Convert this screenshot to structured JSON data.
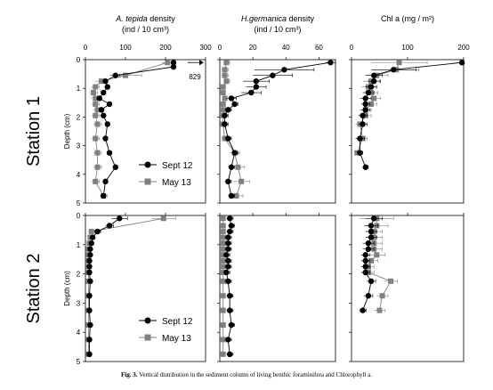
{
  "caption": {
    "label": "Fig. 3.",
    "text": "Vertical distribution in the sediment column of living benthic foraminifera and Chlorophyll a."
  },
  "colors": {
    "sept": "#000000",
    "may": "#808080",
    "axis": "#000000"
  },
  "stations": [
    "Station 1",
    "Station 2"
  ],
  "depth_label": "Depth (cm)",
  "legend": {
    "sept": "Sept 12",
    "may": "May 13"
  },
  "columns": [
    {
      "title_italic": "A. tepida",
      "title_rest": " density",
      "unit": "(ind / 10 cm³)"
    },
    {
      "title_italic": "H.germanica",
      "title_rest": " density",
      "unit": "(ind / 10 cm³)"
    },
    {
      "title_italic": "",
      "title_rest": "Chl a (mg / m²)",
      "unit": ""
    }
  ],
  "chart_data": [
    {
      "type": "line",
      "panel": "Station 1 - A. tepida",
      "x_ticks": [
        "0",
        "100",
        "200",
        "300"
      ],
      "xlim": [
        0,
        300
      ],
      "ylim": [
        0,
        5
      ],
      "y_ticks": [
        "0",
        "1",
        "2",
        "3",
        "4",
        "5"
      ],
      "annotation": "829",
      "series": [
        {
          "name": "Sept 12",
          "depth": [
            0.1,
            0.25,
            0.55,
            0.75,
            0.95,
            1.15,
            1.35,
            1.55,
            1.75,
            1.95,
            2.25,
            2.75,
            3.25,
            3.75,
            4.25,
            4.75
          ],
          "x": [
            220,
            220,
            75,
            50,
            55,
            45,
            35,
            60,
            40,
            45,
            55,
            50,
            60,
            75,
            50,
            45
          ],
          "err": [
            0,
            0,
            10,
            5,
            5,
            5,
            5,
            5,
            5,
            5,
            5,
            5,
            5,
            5,
            5,
            5
          ]
        },
        {
          "name": "May 13",
          "depth": [
            0.1,
            0.55,
            0.75,
            0.95,
            1.15,
            1.35,
            1.55,
            1.75,
            1.95,
            2.25,
            2.75,
            3.25,
            3.75,
            4.25,
            4.75
          ],
          "x": [
            205,
            100,
            40,
            25,
            20,
            25,
            25,
            30,
            25,
            30,
            25,
            30,
            30,
            25,
            45
          ],
          "err": [
            15,
            40,
            15,
            10,
            10,
            10,
            10,
            10,
            10,
            10,
            10,
            10,
            10,
            10,
            10
          ]
        }
      ]
    },
    {
      "type": "line",
      "panel": "Station 1 - H.germanica",
      "x_ticks": [
        "0",
        "20",
        "40",
        "60"
      ],
      "xlim": [
        0,
        70
      ],
      "ylim": [
        0,
        5
      ],
      "series": [
        {
          "name": "Sept 12",
          "depth": [
            0.1,
            0.35,
            0.55,
            0.75,
            0.95,
            1.15,
            1.35,
            1.55,
            1.75,
            1.95,
            2.25,
            2.75,
            3.25,
            3.75,
            4.25,
            4.75
          ],
          "x": [
            67,
            39,
            32,
            22,
            22,
            19,
            7,
            9,
            5,
            3,
            3,
            5,
            9,
            7,
            5,
            7
          ],
          "err": [
            3,
            18,
            12,
            8,
            6,
            6,
            3,
            2,
            2,
            2,
            2,
            2,
            2,
            2,
            2,
            2
          ]
        },
        {
          "name": "May 13",
          "depth": [
            0.1,
            0.35,
            0.55,
            0.75,
            0.95,
            1.15,
            1.35,
            1.55,
            1.75,
            1.95,
            2.25,
            2.75,
            3.25,
            3.75,
            4.25,
            4.75
          ],
          "x": [
            4,
            3,
            3,
            4,
            2,
            2,
            3,
            2,
            2,
            2,
            2,
            3,
            9,
            11,
            13,
            10
          ],
          "err": [
            2,
            2,
            2,
            2,
            1,
            1,
            1,
            1,
            1,
            1,
            1,
            2,
            3,
            4,
            5,
            4
          ]
        }
      ]
    },
    {
      "type": "line",
      "panel": "Station 1 - Chl a",
      "x_ticks": [
        "0",
        "100",
        "200"
      ],
      "xlim": [
        0,
        200
      ],
      "ylim": [
        0,
        5
      ],
      "series": [
        {
          "name": "Sept 12",
          "depth": [
            0.1,
            0.35,
            0.55,
            0.75,
            0.95,
            1.15,
            1.35,
            1.55,
            1.75,
            1.95,
            2.25,
            2.75,
            3.25,
            3.75
          ],
          "x": [
            197,
            75,
            40,
            40,
            35,
            30,
            25,
            25,
            25,
            20,
            20,
            15,
            15,
            25
          ],
          "err": [
            5,
            40,
            15,
            12,
            10,
            10,
            10,
            8,
            8,
            8,
            8,
            8,
            5,
            5
          ]
        },
        {
          "name": "May 13",
          "depth": [
            0.1,
            0.35,
            0.55,
            0.75,
            0.95,
            1.15,
            1.35,
            1.55,
            1.75,
            1.95,
            2.25,
            2.75,
            3.25
          ],
          "x": [
            85,
            80,
            45,
            35,
            30,
            35,
            40,
            35,
            25,
            25,
            15,
            20,
            10
          ],
          "err": [
            50,
            40,
            20,
            15,
            12,
            12,
            12,
            10,
            10,
            10,
            8,
            8,
            5
          ]
        }
      ]
    },
    {
      "type": "line",
      "panel": "Station 2 - A. tepida",
      "xlim": [
        0,
        300
      ],
      "ylim": [
        0,
        5
      ],
      "series": [
        {
          "name": "Sept 12",
          "depth": [
            0.1,
            0.35,
            0.55,
            0.75,
            0.95,
            1.15,
            1.35,
            1.55,
            1.75,
            1.95,
            2.25,
            2.75,
            3.25,
            3.75,
            4.25,
            4.75
          ],
          "x": [
            85,
            60,
            30,
            18,
            15,
            12,
            12,
            10,
            10,
            10,
            12,
            10,
            10,
            12,
            10,
            10
          ],
          "err": [
            20,
            10,
            8,
            5,
            4,
            3,
            3,
            3,
            3,
            3,
            3,
            3,
            3,
            3,
            3,
            3
          ]
        },
        {
          "name": "May 13",
          "depth": [
            0.1,
            0.55,
            0.75,
            0.95,
            1.15,
            1.35,
            1.55,
            1.75,
            1.95,
            2.25,
            2.75,
            3.25,
            3.75,
            4.25,
            4.75
          ],
          "x": [
            195,
            15,
            12,
            10,
            8,
            8,
            8,
            8,
            8,
            8,
            8,
            8,
            8,
            8,
            8
          ],
          "err": [
            30,
            8,
            5,
            4,
            3,
            3,
            3,
            3,
            3,
            3,
            3,
            3,
            3,
            3,
            3
          ]
        }
      ]
    },
    {
      "type": "line",
      "panel": "Station 2 - H.germanica",
      "xlim": [
        0,
        70
      ],
      "ylim": [
        0,
        5
      ],
      "series": [
        {
          "name": "Sept 12",
          "depth": [
            0.1,
            0.35,
            0.55,
            0.75,
            0.95,
            1.15,
            1.35,
            1.55,
            1.75,
            1.95,
            2.25,
            2.75,
            3.25,
            3.75,
            4.25,
            4.75
          ],
          "x": [
            6,
            7,
            6,
            5,
            5,
            5,
            4,
            5,
            5,
            4,
            5,
            6,
            6,
            7,
            5,
            6
          ],
          "err": [
            2,
            2,
            2,
            2,
            2,
            2,
            2,
            2,
            2,
            2,
            2,
            2,
            2,
            2,
            2,
            2
          ]
        },
        {
          "name": "May 13",
          "depth": [
            0.1,
            0.35,
            0.55,
            0.75,
            0.95,
            1.15,
            1.35,
            1.55,
            1.75,
            1.95,
            2.25,
            2.75,
            3.25,
            3.75,
            4.25,
            4.75
          ],
          "x": [
            2,
            2,
            2,
            2,
            2,
            2,
            2,
            2,
            2,
            2,
            2,
            2,
            2,
            2,
            2,
            2
          ],
          "err": [
            1,
            1,
            1,
            1,
            1,
            1,
            1,
            1,
            1,
            1,
            1,
            1,
            1,
            1,
            1,
            1
          ]
        }
      ]
    },
    {
      "type": "line",
      "panel": "Station 2 - Chl a",
      "xlim": [
        0,
        200
      ],
      "ylim": [
        0,
        5
      ],
      "series": [
        {
          "name": "Sept 12",
          "depth": [
            0.1,
            0.35,
            0.55,
            0.75,
            0.95,
            1.15,
            1.35,
            1.55,
            1.75,
            1.95,
            2.25,
            2.75,
            3.25
          ],
          "x": [
            40,
            35,
            35,
            35,
            30,
            30,
            25,
            25,
            25,
            25,
            35,
            30,
            20
          ],
          "err": [
            15,
            12,
            10,
            10,
            10,
            10,
            8,
            8,
            8,
            8,
            8,
            8,
            6
          ]
        },
        {
          "name": "May 13",
          "depth": [
            0.1,
            0.35,
            0.55,
            0.75,
            0.95,
            1.15,
            1.35,
            1.55,
            1.75,
            1.95,
            2.25,
            2.75,
            3.25
          ],
          "x": [
            45,
            45,
            40,
            40,
            40,
            40,
            45,
            35,
            30,
            30,
            70,
            55,
            50
          ],
          "err": [
            30,
            20,
            15,
            15,
            15,
            15,
            15,
            12,
            10,
            10,
            12,
            10,
            10
          ]
        }
      ]
    }
  ]
}
